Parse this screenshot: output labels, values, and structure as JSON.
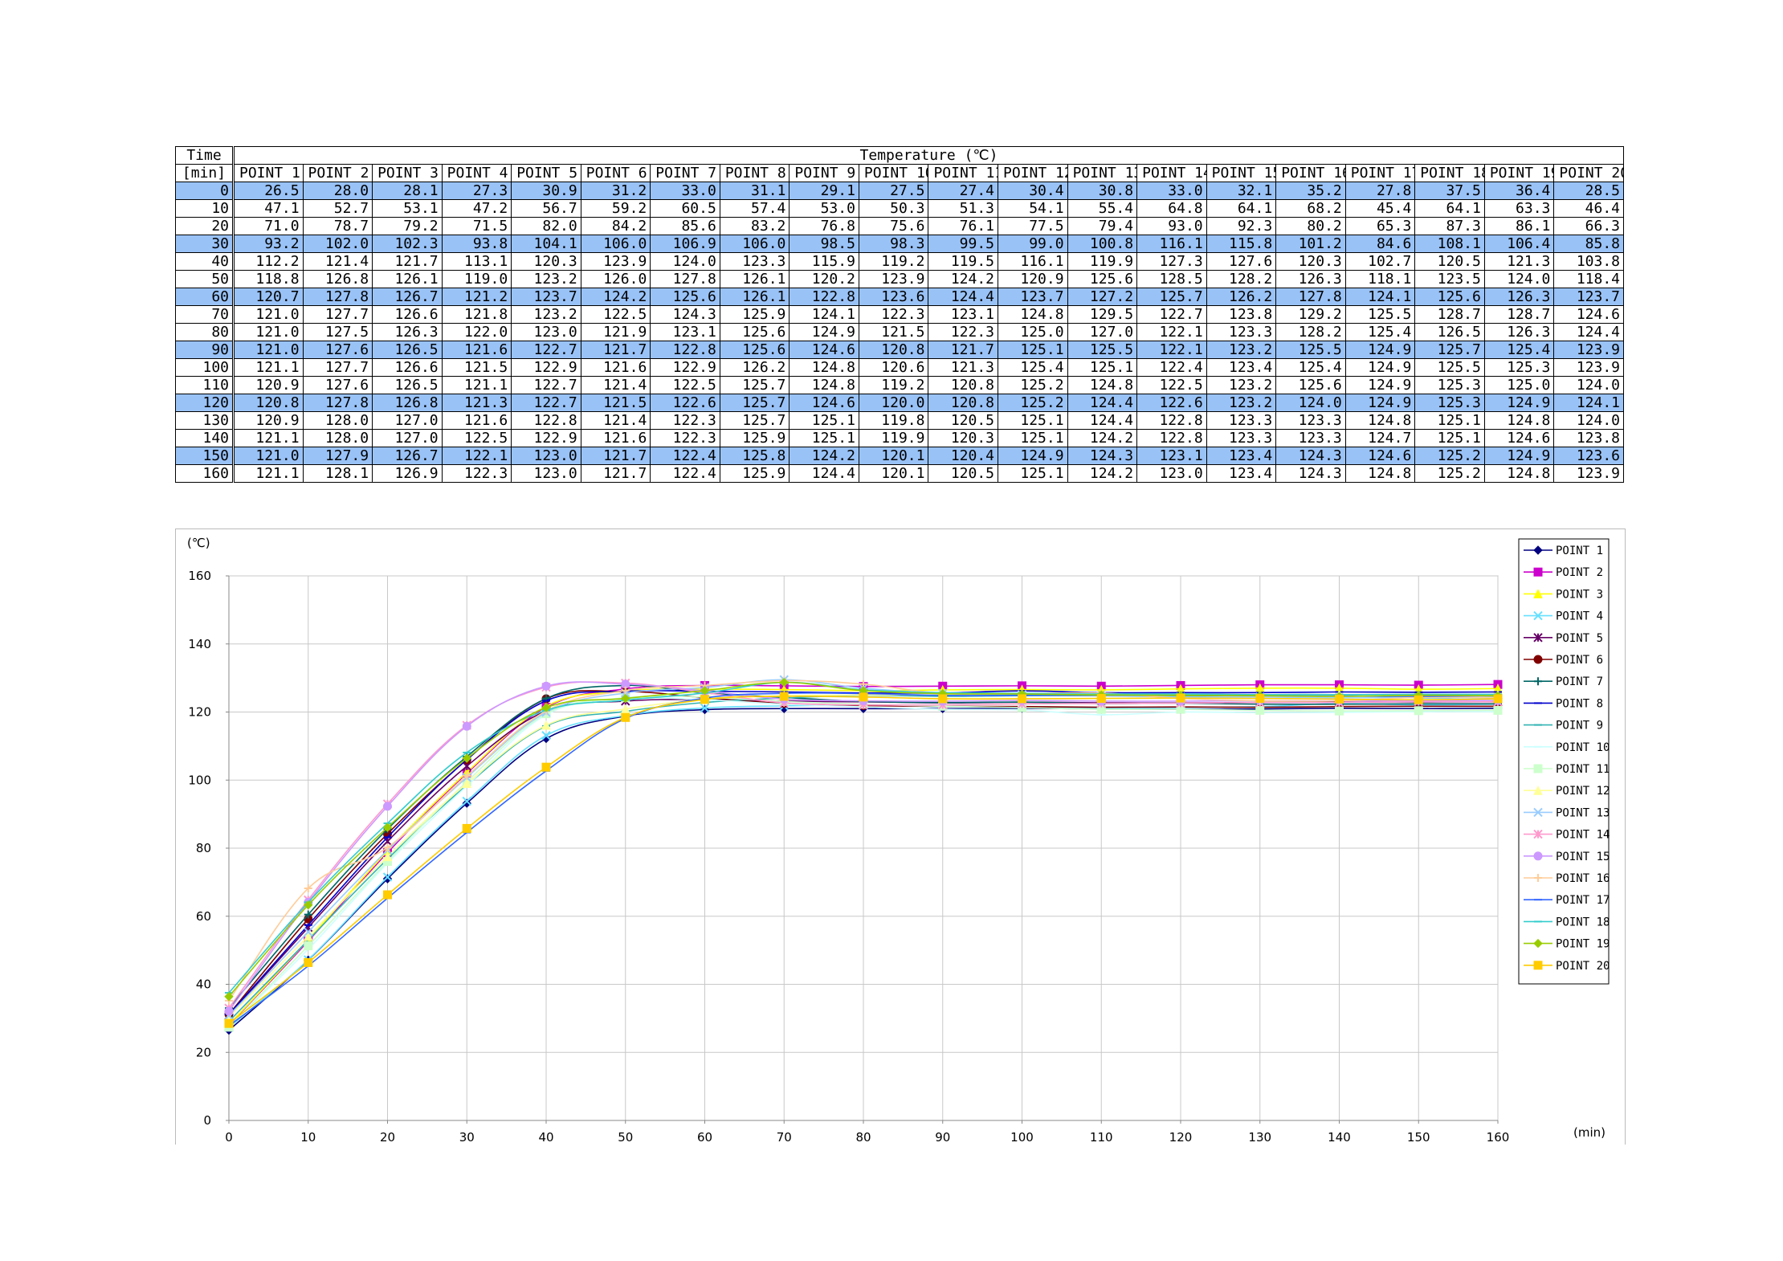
{
  "table": {
    "time_header_line1": "Time",
    "time_header_line2": "[min]",
    "temp_header": "Temperature (℃)",
    "point_labels": [
      "POINT 1",
      "POINT 2",
      "POINT 3",
      "POINT 4",
      "POINT 5",
      "POINT 6",
      "POINT 7",
      "POINT 8",
      "POINT 9",
      "POINT 10",
      "POINT 11",
      "POINT 12",
      "POINT 13",
      "POINT 14",
      "POINT 15",
      "POINT 16",
      "POINT 17",
      "POINT 18",
      "POINT 19",
      "POINT 20"
    ],
    "highlight_rows": [
      0,
      30,
      60,
      90,
      120,
      150
    ],
    "rows": [
      {
        "time": "0",
        "values": [
          "26.5",
          "28.0",
          "28.1",
          "27.3",
          "30.9",
          "31.2",
          "33.0",
          "31.1",
          "29.1",
          "27.5",
          "27.4",
          "30.4",
          "30.8",
          "33.0",
          "32.1",
          "35.2",
          "27.8",
          "37.5",
          "36.4",
          "28.5"
        ]
      },
      {
        "time": "10",
        "values": [
          "47.1",
          "52.7",
          "53.1",
          "47.2",
          "56.7",
          "59.2",
          "60.5",
          "57.4",
          "53.0",
          "50.3",
          "51.3",
          "54.1",
          "55.4",
          "64.8",
          "64.1",
          "68.2",
          "45.4",
          "64.1",
          "63.3",
          "46.4"
        ]
      },
      {
        "time": "20",
        "values": [
          "71.0",
          "78.7",
          "79.2",
          "71.5",
          "82.0",
          "84.2",
          "85.6",
          "83.2",
          "76.8",
          "75.6",
          "76.1",
          "77.5",
          "79.4",
          "93.0",
          "92.3",
          "80.2",
          "65.3",
          "87.3",
          "86.1",
          "66.3"
        ]
      },
      {
        "time": "30",
        "values": [
          "93.2",
          "102.0",
          "102.3",
          "93.8",
          "104.1",
          "106.0",
          "106.9",
          "106.0",
          "98.5",
          "98.3",
          "99.5",
          "99.0",
          "100.8",
          "116.1",
          "115.8",
          "101.2",
          "84.6",
          "108.1",
          "106.4",
          "85.8"
        ]
      },
      {
        "time": "40",
        "values": [
          "112.2",
          "121.4",
          "121.7",
          "113.1",
          "120.3",
          "123.9",
          "124.0",
          "123.3",
          "115.9",
          "119.2",
          "119.5",
          "116.1",
          "119.9",
          "127.3",
          "127.6",
          "120.3",
          "102.7",
          "120.5",
          "121.3",
          "103.8"
        ]
      },
      {
        "time": "50",
        "values": [
          "118.8",
          "126.8",
          "126.1",
          "119.0",
          "123.2",
          "126.0",
          "127.8",
          "126.1",
          "120.2",
          "123.9",
          "124.2",
          "120.9",
          "125.6",
          "128.5",
          "128.2",
          "126.3",
          "118.1",
          "123.5",
          "124.0",
          "118.4"
        ]
      },
      {
        "time": "60",
        "values": [
          "120.7",
          "127.8",
          "126.7",
          "121.2",
          "123.7",
          "124.2",
          "125.6",
          "126.1",
          "122.8",
          "123.6",
          "124.4",
          "123.7",
          "127.2",
          "125.7",
          "126.2",
          "127.8",
          "124.1",
          "125.6",
          "126.3",
          "123.7"
        ]
      },
      {
        "time": "70",
        "values": [
          "121.0",
          "127.7",
          "126.6",
          "121.8",
          "123.2",
          "122.5",
          "124.3",
          "125.9",
          "124.1",
          "122.3",
          "123.1",
          "124.8",
          "129.5",
          "122.7",
          "123.8",
          "129.2",
          "125.5",
          "128.7",
          "128.7",
          "124.6"
        ]
      },
      {
        "time": "80",
        "values": [
          "121.0",
          "127.5",
          "126.3",
          "122.0",
          "123.0",
          "121.9",
          "123.1",
          "125.6",
          "124.9",
          "121.5",
          "122.3",
          "125.0",
          "127.0",
          "122.1",
          "123.3",
          "128.2",
          "125.4",
          "126.5",
          "126.3",
          "124.4"
        ]
      },
      {
        "time": "90",
        "values": [
          "121.0",
          "127.6",
          "126.5",
          "121.6",
          "122.7",
          "121.7",
          "122.8",
          "125.6",
          "124.6",
          "120.8",
          "121.7",
          "125.1",
          "125.5",
          "122.1",
          "123.2",
          "125.5",
          "124.9",
          "125.7",
          "125.4",
          "123.9"
        ]
      },
      {
        "time": "100",
        "values": [
          "121.1",
          "127.7",
          "126.6",
          "121.5",
          "122.9",
          "121.6",
          "122.9",
          "126.2",
          "124.8",
          "120.6",
          "121.3",
          "125.4",
          "125.1",
          "122.4",
          "123.4",
          "125.4",
          "124.9",
          "125.5",
          "125.3",
          "123.9"
        ]
      },
      {
        "time": "110",
        "values": [
          "120.9",
          "127.6",
          "126.5",
          "121.1",
          "122.7",
          "121.4",
          "122.5",
          "125.7",
          "124.8",
          "119.2",
          "120.8",
          "125.2",
          "124.8",
          "122.5",
          "123.2",
          "125.6",
          "124.9",
          "125.3",
          "125.0",
          "124.0"
        ]
      },
      {
        "time": "120",
        "values": [
          "120.8",
          "127.8",
          "126.8",
          "121.3",
          "122.7",
          "121.5",
          "122.6",
          "125.7",
          "124.6",
          "120.0",
          "120.8",
          "125.2",
          "124.4",
          "122.6",
          "123.2",
          "124.0",
          "124.9",
          "125.3",
          "124.9",
          "124.1"
        ]
      },
      {
        "time": "130",
        "values": [
          "120.9",
          "128.0",
          "127.0",
          "121.6",
          "122.8",
          "121.4",
          "122.3",
          "125.7",
          "125.1",
          "119.8",
          "120.5",
          "125.1",
          "124.4",
          "122.8",
          "123.3",
          "123.3",
          "124.8",
          "125.1",
          "124.8",
          "124.0"
        ]
      },
      {
        "time": "140",
        "values": [
          "121.1",
          "128.0",
          "127.0",
          "122.5",
          "122.9",
          "121.6",
          "122.3",
          "125.9",
          "125.1",
          "119.9",
          "120.3",
          "125.1",
          "124.2",
          "122.8",
          "123.3",
          "123.3",
          "124.7",
          "125.1",
          "124.6",
          "123.8"
        ]
      },
      {
        "time": "150",
        "values": [
          "121.0",
          "127.9",
          "126.7",
          "122.1",
          "123.0",
          "121.7",
          "122.4",
          "125.8",
          "124.2",
          "120.1",
          "120.4",
          "124.9",
          "124.3",
          "123.1",
          "123.4",
          "124.3",
          "124.6",
          "125.2",
          "124.9",
          "123.6"
        ]
      },
      {
        "time": "160",
        "values": [
          "121.1",
          "128.1",
          "126.9",
          "122.3",
          "123.0",
          "121.7",
          "122.4",
          "125.9",
          "124.4",
          "120.1",
          "120.5",
          "125.1",
          "124.2",
          "123.0",
          "123.4",
          "124.3",
          "124.8",
          "125.2",
          "124.8",
          "123.9"
        ]
      }
    ]
  },
  "chart_data": {
    "type": "line",
    "ylabel": "(℃)",
    "xlabel": "(min)",
    "x": [
      0,
      10,
      20,
      30,
      40,
      50,
      60,
      70,
      80,
      90,
      100,
      110,
      120,
      130,
      140,
      150,
      160
    ],
    "xlim": [
      0,
      160
    ],
    "ylim": [
      0,
      160
    ],
    "xticks": [
      0,
      10,
      20,
      30,
      40,
      50,
      60,
      70,
      80,
      90,
      100,
      110,
      120,
      130,
      140,
      150,
      160
    ],
    "yticks": [
      0,
      20,
      40,
      60,
      80,
      100,
      120,
      140,
      160
    ],
    "grid": true,
    "legend_placement": "top-right",
    "series": [
      {
        "name": "POINT 1",
        "color": "#000080",
        "marker": "diamond",
        "values": [
          26.5,
          47.1,
          71.0,
          93.2,
          112.2,
          118.8,
          120.7,
          121.0,
          121.0,
          121.0,
          121.1,
          120.9,
          120.8,
          120.9,
          121.1,
          121.0,
          121.1
        ]
      },
      {
        "name": "POINT 2",
        "color": "#cc00cc",
        "marker": "square",
        "values": [
          28.0,
          52.7,
          78.7,
          102.0,
          121.4,
          126.8,
          127.8,
          127.7,
          127.5,
          127.6,
          127.7,
          127.6,
          127.8,
          128.0,
          128.0,
          127.9,
          128.1
        ]
      },
      {
        "name": "POINT 3",
        "color": "#ffff00",
        "marker": "triangle",
        "values": [
          28.1,
          53.1,
          79.2,
          102.3,
          121.7,
          126.1,
          126.7,
          126.6,
          126.3,
          126.5,
          126.6,
          126.5,
          126.8,
          127.0,
          127.0,
          126.7,
          126.9
        ]
      },
      {
        "name": "POINT 4",
        "color": "#66e0ff",
        "marker": "x",
        "values": [
          27.3,
          47.2,
          71.5,
          93.8,
          113.1,
          119.0,
          121.2,
          121.8,
          122.0,
          121.6,
          121.5,
          121.1,
          121.3,
          121.6,
          122.5,
          122.1,
          122.3
        ]
      },
      {
        "name": "POINT 5",
        "color": "#660066",
        "marker": "star",
        "values": [
          30.9,
          56.7,
          82.0,
          104.1,
          120.3,
          123.2,
          123.7,
          123.2,
          123.0,
          122.7,
          122.9,
          122.7,
          122.7,
          122.8,
          122.9,
          123.0,
          123.0
        ]
      },
      {
        "name": "POINT 6",
        "color": "#800000",
        "marker": "circle",
        "values": [
          31.2,
          59.2,
          84.2,
          106.0,
          123.9,
          126.0,
          124.2,
          122.5,
          121.9,
          121.7,
          121.6,
          121.4,
          121.5,
          121.4,
          121.6,
          121.7,
          121.7
        ]
      },
      {
        "name": "POINT 7",
        "color": "#006666",
        "marker": "plus",
        "values": [
          33.0,
          60.5,
          85.6,
          106.9,
          124.0,
          127.8,
          125.6,
          124.3,
          123.1,
          122.8,
          122.9,
          122.5,
          122.6,
          122.3,
          122.3,
          122.4,
          122.4
        ]
      },
      {
        "name": "POINT 8",
        "color": "#0000cc",
        "marker": "dash",
        "values": [
          31.1,
          57.4,
          83.2,
          106.0,
          123.3,
          126.1,
          126.1,
          125.9,
          125.6,
          125.6,
          126.2,
          125.7,
          125.7,
          125.7,
          125.9,
          125.8,
          125.9
        ]
      },
      {
        "name": "POINT 9",
        "color": "#33b3b3",
        "marker": "dash",
        "values": [
          29.1,
          53.0,
          76.8,
          98.5,
          115.9,
          120.2,
          122.8,
          124.1,
          124.9,
          124.6,
          124.8,
          124.8,
          124.6,
          125.1,
          125.1,
          124.2,
          124.4
        ]
      },
      {
        "name": "POINT 10",
        "color": "#ccffff",
        "marker": "dash",
        "values": [
          27.5,
          50.3,
          75.6,
          98.3,
          119.2,
          123.9,
          123.6,
          122.3,
          121.5,
          120.8,
          120.6,
          119.2,
          120.0,
          119.8,
          119.9,
          120.1,
          120.1
        ]
      },
      {
        "name": "POINT 11",
        "color": "#ccffcc",
        "marker": "square",
        "values": [
          27.4,
          51.3,
          76.1,
          99.5,
          119.5,
          124.2,
          124.4,
          123.1,
          122.3,
          121.7,
          121.3,
          120.8,
          120.8,
          120.5,
          120.3,
          120.4,
          120.5
        ]
      },
      {
        "name": "POINT 12",
        "color": "#ffff99",
        "marker": "triangle",
        "values": [
          30.4,
          54.1,
          77.5,
          99.0,
          116.1,
          120.9,
          123.7,
          124.8,
          125.0,
          125.1,
          125.4,
          125.2,
          125.2,
          125.1,
          125.1,
          124.9,
          125.1
        ]
      },
      {
        "name": "POINT 13",
        "color": "#99ccff",
        "marker": "x",
        "values": [
          30.8,
          55.4,
          79.4,
          100.8,
          119.9,
          125.6,
          127.2,
          129.5,
          127.0,
          125.5,
          125.1,
          124.8,
          124.4,
          124.4,
          124.2,
          124.3,
          124.2
        ]
      },
      {
        "name": "POINT 14",
        "color": "#ff99cc",
        "marker": "star",
        "values": [
          33.0,
          64.8,
          93.0,
          116.1,
          127.3,
          128.5,
          125.7,
          122.7,
          122.1,
          122.1,
          122.4,
          122.5,
          122.6,
          122.8,
          122.8,
          123.1,
          123.0
        ]
      },
      {
        "name": "POINT 15",
        "color": "#cc99ff",
        "marker": "circle",
        "values": [
          32.1,
          64.1,
          92.3,
          115.8,
          127.6,
          128.2,
          126.2,
          123.8,
          123.3,
          123.2,
          123.4,
          123.2,
          123.2,
          123.3,
          123.3,
          123.4,
          123.4
        ]
      },
      {
        "name": "POINT 16",
        "color": "#ffcc99",
        "marker": "plus",
        "values": [
          35.2,
          68.2,
          80.2,
          101.2,
          120.3,
          126.3,
          127.8,
          129.2,
          128.2,
          125.5,
          125.4,
          125.6,
          124.0,
          123.3,
          123.3,
          124.3,
          124.3
        ]
      },
      {
        "name": "POINT 17",
        "color": "#3366ff",
        "marker": "dash",
        "values": [
          27.8,
          45.4,
          65.3,
          84.6,
          102.7,
          118.1,
          124.1,
          125.5,
          125.4,
          124.9,
          124.9,
          124.9,
          124.9,
          124.8,
          124.7,
          124.6,
          124.8
        ]
      },
      {
        "name": "POINT 18",
        "color": "#33cccc",
        "marker": "dash",
        "values": [
          37.5,
          64.1,
          87.3,
          108.1,
          120.5,
          123.5,
          125.6,
          128.7,
          126.5,
          125.7,
          125.5,
          125.3,
          125.3,
          125.1,
          125.1,
          125.2,
          125.2
        ]
      },
      {
        "name": "POINT 19",
        "color": "#99cc00",
        "marker": "diamond",
        "values": [
          36.4,
          63.3,
          86.1,
          106.4,
          121.3,
          124.0,
          126.3,
          128.7,
          126.3,
          125.4,
          125.3,
          125.0,
          124.9,
          124.8,
          124.6,
          124.9,
          124.8
        ]
      },
      {
        "name": "POINT 20",
        "color": "#ffcc00",
        "marker": "square",
        "values": [
          28.5,
          46.4,
          66.3,
          85.8,
          103.8,
          118.4,
          123.7,
          124.6,
          124.4,
          123.9,
          123.9,
          124.0,
          124.1,
          124.0,
          123.8,
          123.6,
          123.9
        ]
      }
    ]
  }
}
